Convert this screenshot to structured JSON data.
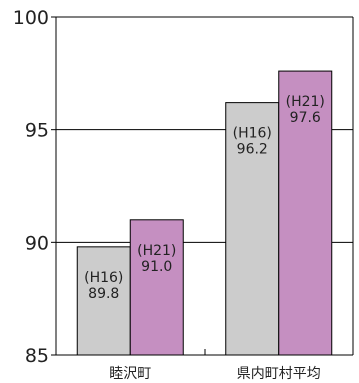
{
  "chart_data": {
    "type": "bar",
    "categories": [
      "睦沢町",
      "県内町村平均"
    ],
    "series": [
      {
        "label": "(H16)",
        "values": [
          89.8,
          96.2
        ],
        "color": "#cccccc"
      },
      {
        "label": "(H21)",
        "values": [
          91.0,
          97.6
        ],
        "color": "#c58fc1"
      }
    ],
    "ylim": [
      85,
      100
    ],
    "yticks": [
      85,
      90,
      95,
      100
    ],
    "grid": true
  }
}
